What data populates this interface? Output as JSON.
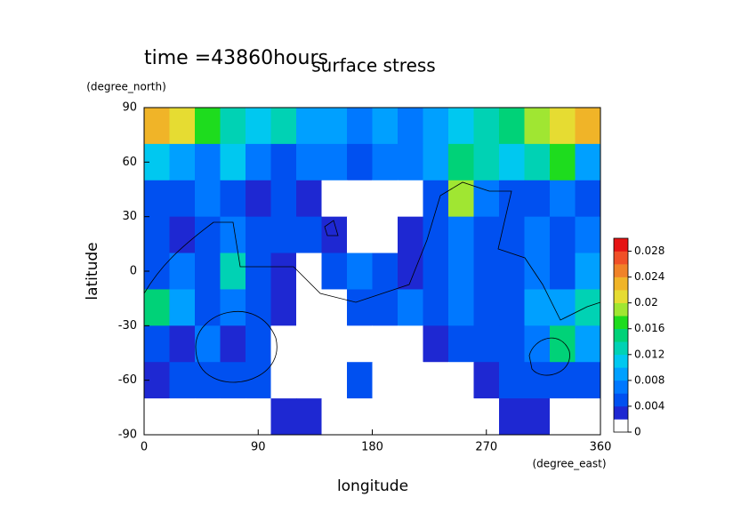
{
  "chart_data": {
    "type": "heatmap",
    "title": "surface stress",
    "subtitle": "time =43860hours",
    "x_label": "longitude",
    "x_unit": "(degree_east)",
    "y_label": "latitude",
    "y_unit": "(degree_north)",
    "xlim": [
      0,
      360
    ],
    "xticks": [
      0,
      90,
      180,
      270,
      360
    ],
    "ylim": [
      -90,
      90
    ],
    "yticks": [
      -90,
      -60,
      -30,
      0,
      30,
      60,
      90
    ],
    "x": [
      10,
      30,
      50,
      70,
      90,
      110,
      130,
      150,
      170,
      190,
      210,
      230,
      250,
      270,
      290,
      310,
      330,
      350
    ],
    "y": [
      80,
      60,
      40,
      20,
      0,
      -20,
      -40,
      -60,
      -80
    ],
    "z": [
      [
        0.022,
        0.02,
        0.016,
        0.012,
        0.01,
        0.012,
        0.008,
        0.008,
        0.006,
        0.008,
        0.006,
        0.008,
        0.01,
        0.012,
        0.014,
        0.018,
        0.02,
        0.022
      ],
      [
        0.01,
        0.008,
        0.006,
        0.01,
        0.006,
        0.004,
        0.006,
        0.006,
        0.004,
        0.006,
        0.006,
        0.008,
        0.014,
        0.012,
        0.01,
        0.012,
        0.016,
        0.008
      ],
      [
        0.004,
        0.004,
        0.006,
        0.004,
        0.002,
        0.004,
        0.002,
        0,
        0,
        0,
        0,
        0.004,
        0.018,
        0.006,
        0.004,
        0.004,
        0.006,
        0.004
      ],
      [
        0.004,
        0.002,
        0.004,
        0.006,
        0.004,
        0.004,
        0.004,
        0.002,
        0,
        0,
        0.002,
        0.004,
        0.006,
        0.004,
        0.004,
        0.006,
        0.004,
        0.006
      ],
      [
        0.004,
        0.006,
        0.004,
        0.012,
        0.004,
        0.002,
        0,
        0.004,
        0.006,
        0.004,
        0.002,
        0.004,
        0.006,
        0.004,
        0.004,
        0.006,
        0.004,
        0.008
      ],
      [
        0.014,
        0.008,
        0.004,
        0.006,
        0.004,
        0.002,
        0,
        0,
        0.004,
        0.004,
        0.006,
        0.004,
        0.006,
        0.004,
        0.004,
        0.008,
        0.008,
        0.012
      ],
      [
        0.004,
        0.002,
        0.006,
        0.002,
        0.004,
        0,
        0,
        0,
        0,
        0,
        0,
        0.002,
        0.004,
        0.004,
        0.004,
        0.006,
        0.014,
        0.008
      ],
      [
        0.002,
        0.004,
        0.004,
        0.004,
        0.004,
        0,
        0,
        0,
        0.004,
        0,
        0,
        0,
        0,
        0.002,
        0.004,
        0.004,
        0.004,
        0.004
      ],
      [
        0,
        0,
        0,
        0,
        0,
        0.002,
        0.002,
        0,
        0,
        0,
        0,
        0,
        0,
        0,
        0.002,
        0.002,
        0,
        0
      ]
    ],
    "levels": [
      0,
      0.002,
      0.004,
      0.006,
      0.008,
      0.01,
      0.012,
      0.014,
      0.016,
      0.018,
      0.02,
      0.022,
      0.024,
      0.026,
      0.028,
      0.03
    ],
    "colors": [
      "#ffffff",
      "#1e28d2",
      "#0050f0",
      "#0078ff",
      "#00a0ff",
      "#00c8f0",
      "#00d2b4",
      "#00d278",
      "#1edc1e",
      "#a0e632",
      "#e6dc32",
      "#f0b428",
      "#f08228",
      "#f05028",
      "#e61414"
    ],
    "cticks": [
      0,
      0.004,
      0.008,
      0.012,
      0.016,
      0.02,
      0.024,
      0.028
    ]
  }
}
